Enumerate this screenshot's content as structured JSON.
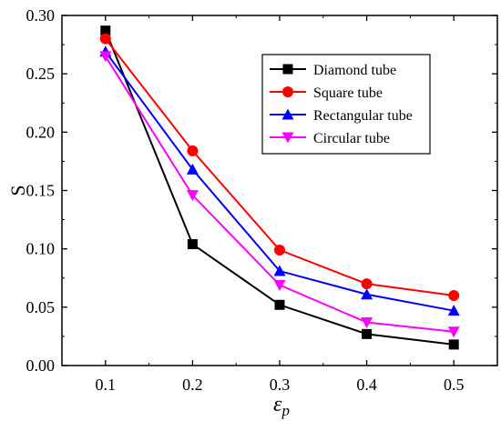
{
  "chart_data": {
    "type": "line",
    "title": "",
    "xlabel": "εp",
    "ylabel": "S",
    "x": [
      0.1,
      0.2,
      0.3,
      0.4,
      0.5
    ],
    "x_tick_labels": [
      "0.1",
      "0.2",
      "0.3",
      "0.4",
      "0.5"
    ],
    "y_tick_labels": [
      "0.00",
      "0.05",
      "0.10",
      "0.15",
      "0.20",
      "0.25",
      "0.30"
    ],
    "xlim": [
      0.05,
      0.55
    ],
    "ylim": [
      0.0,
      0.3
    ],
    "grid": false,
    "legend_position": "top-right",
    "series": [
      {
        "name": "Diamond tube",
        "color": "#000000",
        "marker": "square",
        "values": [
          0.287,
          0.104,
          0.052,
          0.027,
          0.018
        ]
      },
      {
        "name": "Square tube",
        "color": "#ff0000",
        "marker": "circle",
        "values": [
          0.28,
          0.184,
          0.099,
          0.07,
          0.06
        ]
      },
      {
        "name": "Rectangular tube",
        "color": "#0000ff",
        "marker": "triangle-up",
        "values": [
          0.269,
          0.168,
          0.081,
          0.061,
          0.047
        ]
      },
      {
        "name": "Circular tube",
        "color": "#ff00ff",
        "marker": "triangle-down",
        "values": [
          0.265,
          0.146,
          0.069,
          0.037,
          0.029
        ]
      }
    ]
  }
}
